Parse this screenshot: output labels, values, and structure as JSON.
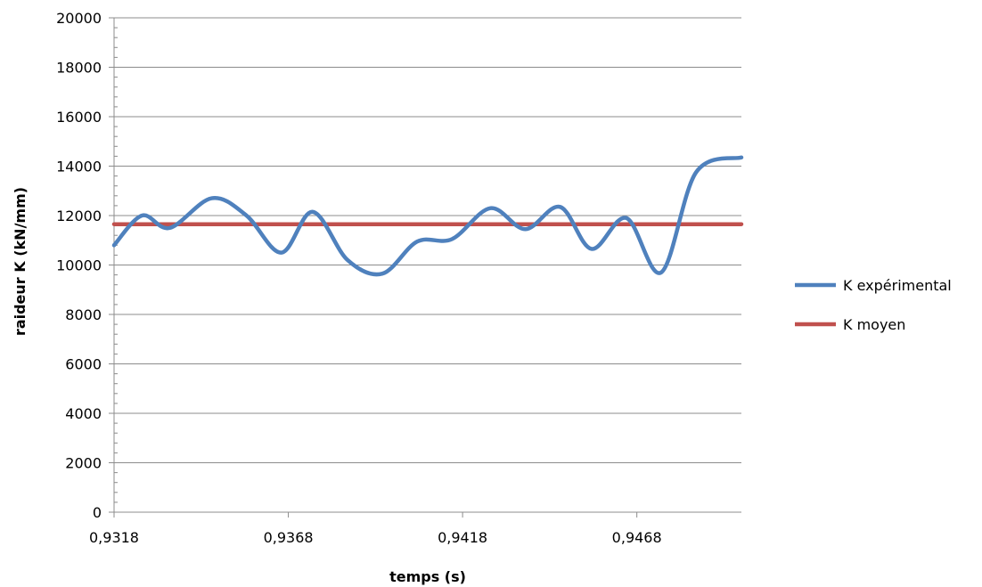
{
  "chart_data": {
    "type": "line",
    "title": "",
    "xlabel": "temps (s)",
    "ylabel": "raideur K (kN/mm)",
    "xlim": [
      0.9318,
      0.9498
    ],
    "ylim": [
      0,
      20000
    ],
    "y_ticks": [
      0,
      2000,
      4000,
      6000,
      8000,
      10000,
      12000,
      14000,
      16000,
      18000,
      20000
    ],
    "y_tick_labels": [
      "0",
      "2000",
      "4000",
      "6000",
      "8000",
      "10000",
      "12000",
      "14000",
      "16000",
      "18000",
      "20000"
    ],
    "x_ticks": [
      0.9318,
      0.9368,
      0.9418,
      0.9468
    ],
    "x_tick_labels": [
      "0,9318",
      "0,9368",
      "0,9418",
      "0,9468"
    ],
    "grid": "horizontal",
    "legend_position": "right",
    "series": [
      {
        "name": "K expérimental",
        "color": "#4f81bd",
        "x": [
          0.9318,
          0.9326,
          0.9334,
          0.9346,
          0.9356,
          0.9366,
          0.9375,
          0.9385,
          0.9395,
          0.9405,
          0.9415,
          0.9426,
          0.9436,
          0.9446,
          0.9455,
          0.9465,
          0.9475,
          0.9485,
          0.9498
        ],
        "y": [
          10800,
          12000,
          11500,
          12700,
          12000,
          10500,
          12150,
          10200,
          9650,
          10950,
          11050,
          12300,
          11450,
          12350,
          10650,
          11900,
          9700,
          13750,
          14350
        ]
      },
      {
        "name": "K moyen",
        "color": "#c0504d",
        "x": [
          0.9318,
          0.9498
        ],
        "y": [
          11650,
          11650
        ]
      }
    ]
  }
}
